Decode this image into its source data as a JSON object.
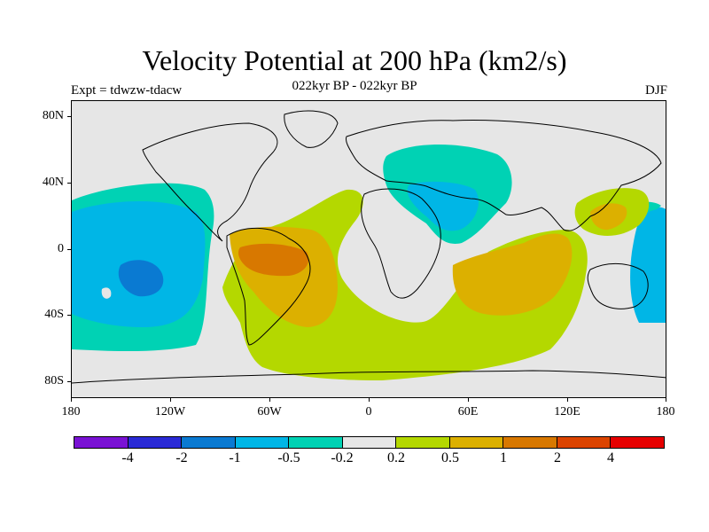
{
  "title": "Velocity Potential at 200 hPa (km2/s)",
  "subtitle": "022kyr BP - 022kyr BP",
  "left_label": "Expt = tdwzw-tdacw",
  "right_label": "DJF",
  "lat_labels": [
    "80N",
    "40N",
    "0",
    "40S",
    "80S"
  ],
  "lon_labels": [
    "180",
    "120W",
    "60W",
    "0",
    "60E",
    "120E",
    "180"
  ],
  "colorbar": {
    "colors": [
      "#7a12d4",
      "#2a2ad6",
      "#0a7ad2",
      "#00b6e6",
      "#00d2b4",
      "#e6e6e6",
      "#b4d800",
      "#dcb000",
      "#d87800",
      "#dc4400",
      "#e60000"
    ],
    "labels": [
      "-4",
      "-2",
      "-1",
      "-0.5",
      "-0.2",
      "0.2",
      "0.5",
      "1",
      "2",
      "4"
    ]
  },
  "colors": {
    "background_field": "#e6e6e6",
    "coastline": "#000000"
  }
}
